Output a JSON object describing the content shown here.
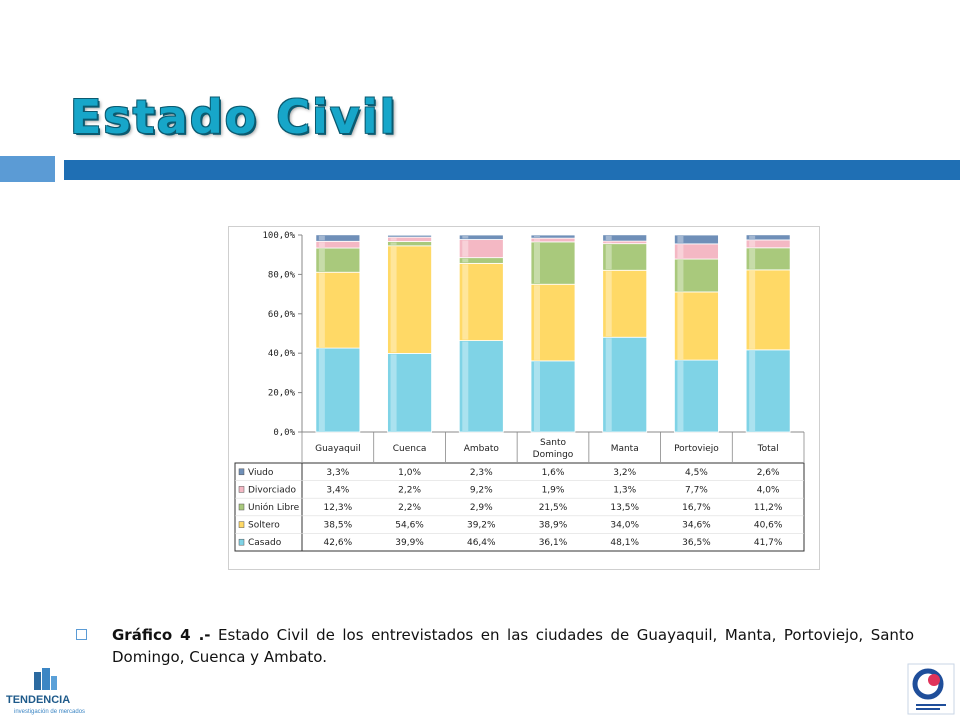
{
  "slide": {
    "title": "Estado Civil",
    "caption_bold": "Gráfico 4 .-",
    "caption_text": " Estado Civil de los entrevistados en las ciudades de Guayaquil, Manta, Portoviejo, Santo Domingo, Cuenca y Ambato.",
    "logo_left_text": "TENDENCIA",
    "logo_left_sub": "investigación de mercados"
  },
  "colors": {
    "accent_bar": "#1f6fb4",
    "title": "#17a6c9"
  },
  "chart_data": {
    "type": "bar",
    "stacked": true,
    "categories": [
      "Guayaquil",
      "Cuenca",
      "Ambato",
      "Santo Domingo",
      "Manta",
      "Portoviejo",
      "Total"
    ],
    "ylim": [
      0,
      100
    ],
    "yticks": [
      "0,0%",
      "20,0%",
      "40,0%",
      "60,0%",
      "80,0%",
      "100,0%"
    ],
    "series": [
      {
        "name": "Casado",
        "color": "#7fd3e6",
        "values": [
          42.6,
          39.9,
          46.4,
          36.1,
          48.1,
          36.5,
          41.7
        ],
        "labels": [
          "42,6%",
          "39,9%",
          "46,4%",
          "36,1%",
          "48,1%",
          "36,5%",
          "41,7%"
        ]
      },
      {
        "name": "Soltero",
        "color": "#ffd966",
        "values": [
          38.5,
          54.6,
          39.2,
          38.9,
          34.0,
          34.6,
          40.6
        ],
        "labels": [
          "38,5%",
          "54,6%",
          "39,2%",
          "38,9%",
          "34,0%",
          "34,6%",
          "40,6%"
        ]
      },
      {
        "name": "Unión Libre",
        "color": "#a9c97c",
        "values": [
          12.3,
          2.2,
          2.9,
          21.5,
          13.5,
          16.7,
          11.2
        ],
        "labels": [
          "12,3%",
          "2,2%",
          "2,9%",
          "21,5%",
          "13,5%",
          "16,7%",
          "11,2%"
        ]
      },
      {
        "name": "Divorciado",
        "color": "#f4b8c4",
        "values": [
          3.4,
          2.2,
          9.2,
          1.9,
          1.3,
          7.7,
          4.0
        ],
        "labels": [
          "3,4%",
          "2,2%",
          "9,2%",
          "1,9%",
          "1,3%",
          "7,7%",
          "4,0%"
        ]
      },
      {
        "name": "Viudo",
        "color": "#6f8fb8",
        "values": [
          3.3,
          1.0,
          2.3,
          1.6,
          3.2,
          4.5,
          2.6
        ],
        "labels": [
          "3,3%",
          "1,0%",
          "2,3%",
          "1,6%",
          "3,2%",
          "4,5%",
          "2,6%"
        ]
      }
    ],
    "table_order": [
      "Viudo",
      "Divorciado",
      "Unión Libre",
      "Soltero",
      "Casado"
    ],
    "grid": false,
    "legend": "data-table-below"
  }
}
